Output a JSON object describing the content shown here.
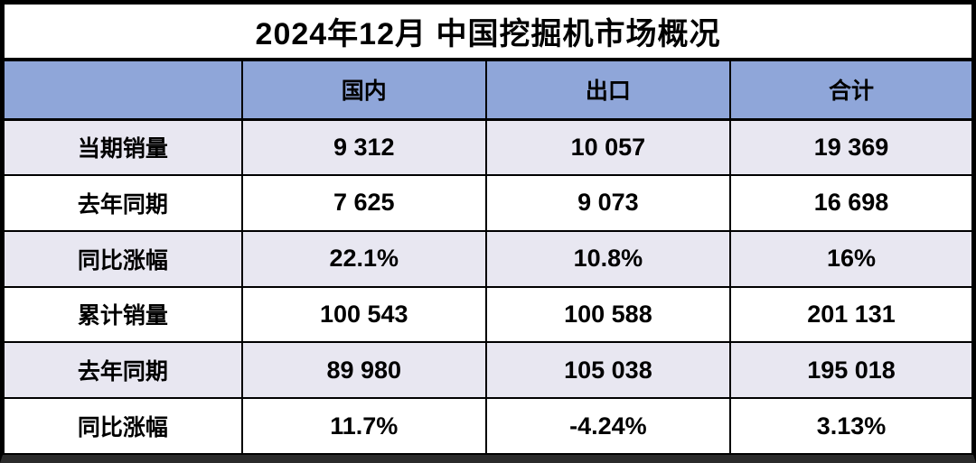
{
  "chart_data": {
    "type": "table",
    "title": "2024年12月 中国挖掘机市场概况",
    "columns": [
      "",
      "国内",
      "出口",
      "合计"
    ],
    "rows": [
      {
        "label": "当期销量",
        "values": [
          "9 312",
          "10 057",
          "19 369"
        ]
      },
      {
        "label": "去年同期",
        "values": [
          "7 625",
          "9 073",
          "16 698"
        ]
      },
      {
        "label": "同比涨幅",
        "values": [
          "22.1%",
          "10.8%",
          "16%"
        ]
      },
      {
        "label": "累计销量",
        "values": [
          "100 543",
          "100 588",
          "201 131"
        ]
      },
      {
        "label": "去年同期",
        "values": [
          "89 980",
          "105 038",
          "195 018"
        ]
      },
      {
        "label": "同比涨幅",
        "values": [
          "11.7%",
          "-4.24%",
          "3.13%"
        ]
      }
    ]
  },
  "colors": {
    "header_bg": "#8FA6D9",
    "alt_row_bg": "#E8E7F1",
    "row_bg": "#FFFFFF",
    "border": "#000000",
    "bottom_bar": "#2B2B2B",
    "text": "#000000"
  }
}
